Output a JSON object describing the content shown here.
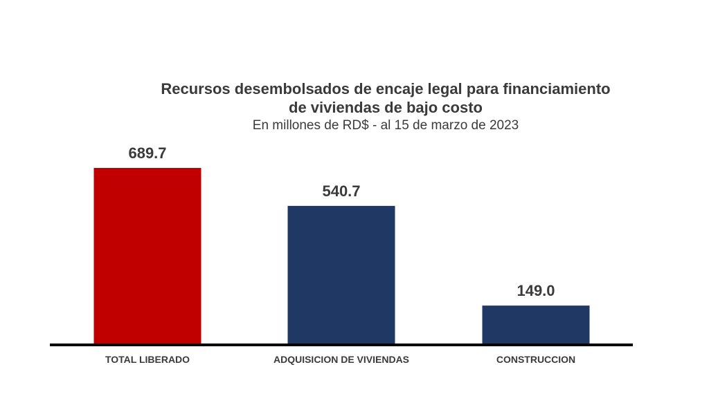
{
  "chart_data": {
    "type": "bar",
    "title_lines": [
      "Recursos desembolsados de encaje legal para financiamiento",
      "de viviendas de bajo costo"
    ],
    "subtitle": "En millones de RD$ - al 15 de marzo de 2023",
    "categories": [
      "TOTAL LIBERADO",
      "ADQUISICION DE VIVIENDAS",
      "CONSTRUCCION"
    ],
    "values": [
      689.7,
      540.7,
      149.0
    ],
    "data_labels": [
      "689.7",
      "540.7",
      "149.0"
    ],
    "colors": [
      "#c00000",
      "#1f3864",
      "#1f3864"
    ],
    "axis_color": "#000000",
    "xlabel": "",
    "ylabel": "",
    "ylim": [
      0,
      689.7
    ],
    "grid": false,
    "legend": "none"
  }
}
